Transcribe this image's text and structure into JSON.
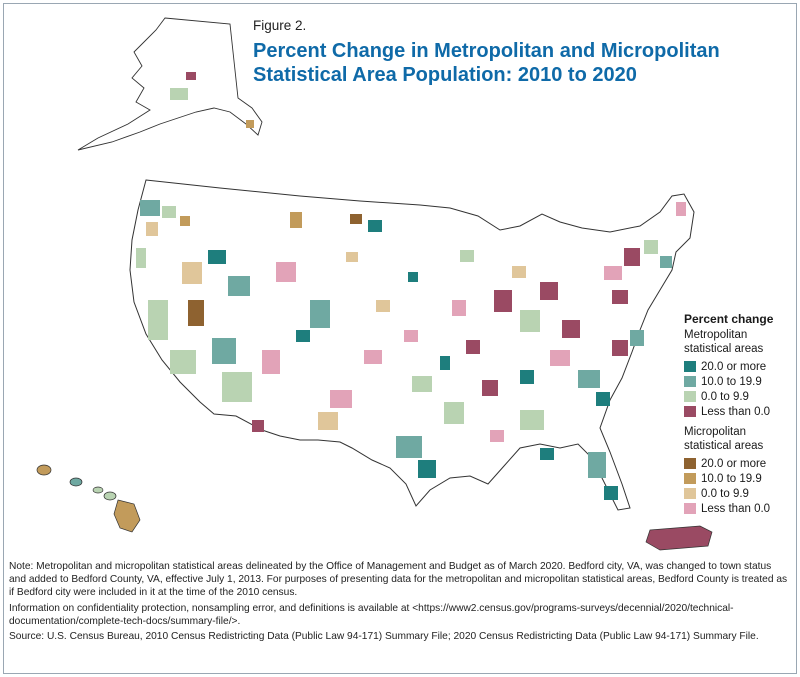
{
  "figure_label": "Figure 2.",
  "title": "Percent Change in Metropolitan and Micropolitan Statistical Area Population: 2010 to 2020",
  "legend": {
    "title": "Percent change",
    "metro_heading": "Metropolitan statistical areas",
    "micro_heading": "Micropolitan statistical areas",
    "metro": [
      {
        "label": "20.0 or more",
        "color": "#1e7e7d"
      },
      {
        "label": "10.0 to 19.9",
        "color": "#6fa9a2"
      },
      {
        "label": "0.0 to 9.9",
        "color": "#b9d3b2"
      },
      {
        "label": "Less than 0.0",
        "color": "#9a4a63"
      }
    ],
    "micro": [
      {
        "label": "20.0 or more",
        "color": "#8e6230"
      },
      {
        "label": "10.0 to 19.9",
        "color": "#c29b5b"
      },
      {
        "label": "0.0 to 9.9",
        "color": "#e0c69a"
      },
      {
        "label": "Less than 0.0",
        "color": "#e2a3b8"
      }
    ]
  },
  "notes": {
    "note": "Note: Metropolitan and micropolitan statistical areas delineated by the Office of Management and Budget as of March 2020. Bedford city, VA, was changed to town status and added to Bedford County, VA, effective July 1, 2013. For purposes of presenting data for the metropolitan and micropolitan statistical areas, Bedford County is treated as if Bedford city were included in it at the time of the 2010 census.",
    "info": "Information on confidentiality protection, nonsampling error, and definitions is available at <https://www2.census.gov/programs-surveys/decennial/2020/technical-documentation/complete-tech-docs/summary-file/>.",
    "source": "Source: U.S. Census Bureau, 2010 Census Redistricting Data (Public Law 94-171) Summary File; 2020 Census Redistricting Data (Public Law 94-171) Summary File."
  },
  "map_regions": [
    "Contiguous United States",
    "Alaska",
    "Hawaii",
    "Puerto Rico"
  ]
}
